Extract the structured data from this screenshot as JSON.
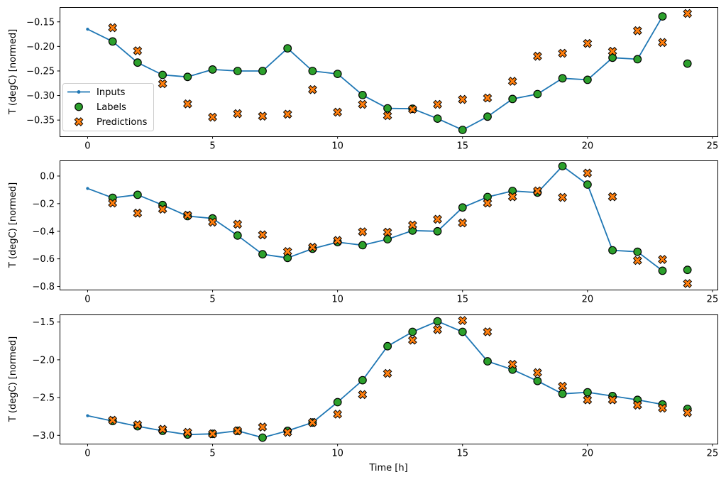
{
  "figure": {
    "background": "#ffffff",
    "xlabel": "Time [h]",
    "ylabel": "T (degC) [normed]",
    "legend": {
      "entries": [
        "Inputs",
        "Labels",
        "Predictions"
      ],
      "location": "left side of first subplot"
    },
    "colors": {
      "inputs_line": "#1f77b4",
      "labels_marker": "#2ca02c",
      "predictions_marker": "#ff7f0e",
      "marker_edge": "#000000",
      "legend_border": "#cccccc",
      "axes": "#000000",
      "text": "#000000"
    }
  },
  "chart_data": [
    {
      "type": "line",
      "title": "",
      "ylabel": "T (degC) [normed]",
      "xlabel": "",
      "xlim": [
        -1.12,
        25.2
      ],
      "ylim": [
        -0.383,
        -0.12
      ],
      "xticks": {
        "values": [
          0,
          5,
          10,
          15,
          20,
          25
        ],
        "labels": [
          "0",
          "5",
          "10",
          "15",
          "20",
          "25"
        ]
      },
      "yticks": {
        "values": [
          -0.15,
          -0.2,
          -0.25,
          -0.3,
          -0.35
        ],
        "labels": [
          "−0.15",
          "−0.20",
          "−0.25",
          "−0.30",
          "−0.35"
        ]
      },
      "grid": false,
      "show_legend": true,
      "series": [
        {
          "name": "Inputs",
          "style": "line-dot",
          "color": "#1f77b4",
          "x": [
            0,
            1,
            2,
            3,
            4,
            5,
            6,
            7,
            8,
            9,
            10,
            11,
            12,
            13,
            14,
            15,
            16,
            17,
            18,
            19,
            20,
            21,
            22,
            23
          ],
          "y": [
            -0.165,
            -0.19,
            -0.233,
            -0.258,
            -0.262,
            -0.247,
            -0.25,
            -0.25,
            -0.204,
            -0.25,
            -0.256,
            -0.299,
            -0.326,
            -0.327,
            -0.347,
            -0.37,
            -0.343,
            -0.307,
            -0.297,
            -0.265,
            -0.268,
            -0.223,
            -0.226,
            -0.139
          ]
        },
        {
          "name": "Labels",
          "style": "circle",
          "color": "#2ca02c",
          "x": [
            1,
            2,
            3,
            4,
            5,
            6,
            7,
            8,
            9,
            10,
            11,
            12,
            13,
            14,
            15,
            16,
            17,
            18,
            19,
            20,
            21,
            22,
            23,
            24
          ],
          "y": [
            -0.19,
            -0.233,
            -0.258,
            -0.262,
            -0.247,
            -0.25,
            -0.25,
            -0.204,
            -0.25,
            -0.256,
            -0.299,
            -0.326,
            -0.327,
            -0.347,
            -0.37,
            -0.343,
            -0.307,
            -0.297,
            -0.265,
            -0.268,
            -0.223,
            -0.226,
            -0.139,
            -0.235
          ]
        },
        {
          "name": "Predictions",
          "style": "X",
          "color": "#ff7f0e",
          "x": [
            1,
            2,
            3,
            4,
            5,
            6,
            7,
            8,
            9,
            10,
            11,
            12,
            13,
            14,
            15,
            16,
            17,
            18,
            19,
            20,
            21,
            22,
            23,
            24
          ],
          "y": [
            -0.162,
            -0.209,
            -0.276,
            -0.317,
            -0.344,
            -0.337,
            -0.342,
            -0.338,
            -0.288,
            -0.334,
            -0.318,
            -0.341,
            -0.328,
            -0.318,
            -0.308,
            -0.305,
            -0.271,
            -0.22,
            -0.214,
            -0.194,
            -0.21,
            -0.168,
            -0.192,
            -0.133
          ]
        }
      ]
    },
    {
      "type": "line",
      "title": "",
      "ylabel": "T (degC) [normed]",
      "xlabel": "",
      "xlim": [
        -1.12,
        25.2
      ],
      "ylim": [
        -0.823,
        0.113
      ],
      "xticks": {
        "values": [
          0,
          5,
          10,
          15,
          20,
          25
        ],
        "labels": [
          "0",
          "5",
          "10",
          "15",
          "20",
          "25"
        ]
      },
      "yticks": {
        "values": [
          0.0,
          -0.2,
          -0.4,
          -0.6,
          -0.8
        ],
        "labels": [
          "0.0",
          "−0.2",
          "−0.4",
          "−0.6",
          "−0.8"
        ]
      },
      "grid": false,
      "show_legend": false,
      "series": [
        {
          "name": "Inputs",
          "style": "line-dot",
          "color": "#1f77b4",
          "x": [
            0,
            1,
            2,
            3,
            4,
            5,
            6,
            7,
            8,
            9,
            10,
            11,
            12,
            13,
            14,
            15,
            16,
            17,
            18,
            19,
            20,
            21,
            22,
            23
          ],
          "y": [
            -0.09,
            -0.158,
            -0.136,
            -0.21,
            -0.29,
            -0.307,
            -0.431,
            -0.567,
            -0.593,
            -0.527,
            -0.479,
            -0.501,
            -0.458,
            -0.395,
            -0.4,
            -0.228,
            -0.152,
            -0.108,
            -0.12,
            0.072,
            -0.062,
            -0.538,
            -0.549,
            -0.686
          ]
        },
        {
          "name": "Labels",
          "style": "circle",
          "color": "#2ca02c",
          "x": [
            1,
            2,
            3,
            4,
            5,
            6,
            7,
            8,
            9,
            10,
            11,
            12,
            13,
            14,
            15,
            16,
            17,
            18,
            19,
            20,
            21,
            22,
            23,
            24
          ],
          "y": [
            -0.158,
            -0.136,
            -0.21,
            -0.29,
            -0.307,
            -0.431,
            -0.567,
            -0.593,
            -0.527,
            -0.479,
            -0.501,
            -0.458,
            -0.395,
            -0.4,
            -0.228,
            -0.152,
            -0.108,
            -0.12,
            0.072,
            -0.062,
            -0.538,
            -0.549,
            -0.686,
            -0.68
          ]
        },
        {
          "name": "Predictions",
          "style": "X",
          "color": "#ff7f0e",
          "x": [
            1,
            2,
            3,
            4,
            5,
            6,
            7,
            8,
            9,
            10,
            11,
            12,
            13,
            14,
            15,
            16,
            17,
            18,
            19,
            20,
            21,
            22,
            23,
            24
          ],
          "y": [
            -0.196,
            -0.269,
            -0.24,
            -0.284,
            -0.334,
            -0.349,
            -0.426,
            -0.547,
            -0.516,
            -0.467,
            -0.404,
            -0.407,
            -0.355,
            -0.313,
            -0.34,
            -0.196,
            -0.15,
            -0.108,
            -0.155,
            0.021,
            -0.15,
            -0.612,
            -0.604,
            -0.779
          ]
        }
      ]
    },
    {
      "type": "line",
      "title": "",
      "ylabel": "T (degC) [normed]",
      "xlabel": "Time [h]",
      "xlim": [
        -1.12,
        25.2
      ],
      "ylim": [
        -3.11,
        -1.4
      ],
      "xticks": {
        "values": [
          0,
          5,
          10,
          15,
          20,
          25
        ],
        "labels": [
          "0",
          "5",
          "10",
          "15",
          "20",
          "25"
        ]
      },
      "yticks": {
        "values": [
          -1.5,
          -2.0,
          -2.5,
          -3.0
        ],
        "labels": [
          "−1.5",
          "−2.0",
          "−2.5",
          "−3.0"
        ]
      },
      "grid": false,
      "show_legend": false,
      "series": [
        {
          "name": "Inputs",
          "style": "line-dot",
          "color": "#1f77b4",
          "x": [
            0,
            1,
            2,
            3,
            4,
            5,
            6,
            7,
            8,
            9,
            10,
            11,
            12,
            13,
            14,
            15,
            16,
            17,
            18,
            19,
            20,
            21,
            22,
            23
          ],
          "y": [
            -2.74,
            -2.81,
            -2.88,
            -2.94,
            -2.99,
            -2.98,
            -2.94,
            -3.03,
            -2.94,
            -2.83,
            -2.56,
            -2.27,
            -1.82,
            -1.63,
            -1.49,
            -1.63,
            -2.02,
            -2.13,
            -2.28,
            -2.45,
            -2.43,
            -2.48,
            -2.53,
            -2.59
          ]
        },
        {
          "name": "Labels",
          "style": "circle",
          "color": "#2ca02c",
          "x": [
            1,
            2,
            3,
            4,
            5,
            6,
            7,
            8,
            9,
            10,
            11,
            12,
            13,
            14,
            15,
            16,
            17,
            18,
            19,
            20,
            21,
            22,
            23,
            24
          ],
          "y": [
            -2.81,
            -2.88,
            -2.94,
            -2.99,
            -2.98,
            -2.94,
            -3.03,
            -2.94,
            -2.83,
            -2.56,
            -2.27,
            -1.82,
            -1.63,
            -1.49,
            -1.63,
            -2.02,
            -2.13,
            -2.28,
            -2.45,
            -2.43,
            -2.48,
            -2.53,
            -2.59,
            -2.65
          ]
        },
        {
          "name": "Predictions",
          "style": "X",
          "color": "#ff7f0e",
          "x": [
            1,
            2,
            3,
            4,
            5,
            6,
            7,
            8,
            9,
            10,
            11,
            12,
            13,
            14,
            15,
            16,
            17,
            18,
            19,
            20,
            21,
            22,
            23,
            24
          ],
          "y": [
            -2.8,
            -2.86,
            -2.92,
            -2.96,
            -2.98,
            -2.94,
            -2.89,
            -2.96,
            -2.83,
            -2.72,
            -2.46,
            -2.18,
            -1.74,
            -1.6,
            -1.48,
            -1.63,
            -2.06,
            -2.17,
            -2.35,
            -2.53,
            -2.53,
            -2.6,
            -2.64,
            -2.7
          ]
        }
      ]
    }
  ]
}
